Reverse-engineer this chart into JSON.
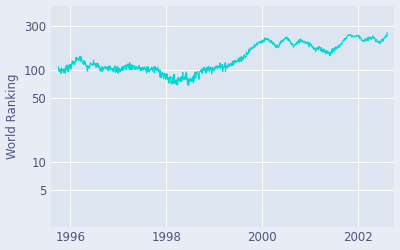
{
  "ylabel": "World Ranking",
  "line_color": "#00d8d8",
  "background_color": "#e8ecf4",
  "axes_background": "#dde6f0",
  "line_width": 0.8,
  "yticks": [
    5,
    10,
    50,
    100,
    300
  ],
  "xlim_start": 1995.6,
  "xlim_end": 2002.75,
  "ylim_bottom": 2,
  "ylim_top": 500,
  "xticks": [
    1996,
    1998,
    2000,
    2002
  ],
  "grid_color": "#ffffff",
  "text_color": "#4a5580",
  "fontsize": 8.5
}
